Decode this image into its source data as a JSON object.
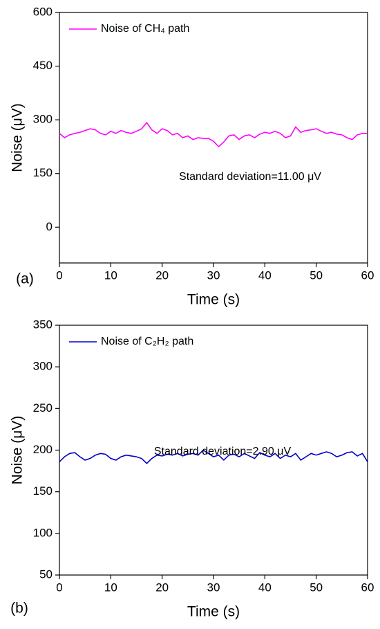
{
  "chart_data": [
    {
      "type": "line",
      "panel_label": "(a)",
      "xlabel": "Time (s)",
      "ylabel": "Noise (μV)",
      "annotation": "Standard deviation=11.00 μV",
      "xlim": [
        0,
        60
      ],
      "xticks": [
        0,
        10,
        20,
        30,
        40,
        50,
        60
      ],
      "ylim": [
        -100,
        600
      ],
      "yticks": [
        0,
        150,
        300,
        450,
        600
      ],
      "legend": "upper left",
      "x": [
        0,
        1,
        2,
        3,
        4,
        5,
        6,
        7,
        8,
        9,
        10,
        11,
        12,
        13,
        14,
        15,
        16,
        17,
        18,
        19,
        20,
        21,
        22,
        23,
        24,
        25,
        26,
        27,
        28,
        29,
        30,
        31,
        32,
        33,
        34,
        35,
        36,
        37,
        38,
        39,
        40,
        41,
        42,
        43,
        44,
        45,
        46,
        47,
        48,
        49,
        50,
        51,
        52,
        53,
        54,
        55,
        56,
        57,
        58,
        59,
        60
      ],
      "series": [
        {
          "name": "Noise of CH₄ path",
          "color": "#ff00ff",
          "values": [
            262,
            250,
            258,
            262,
            265,
            270,
            275,
            272,
            262,
            258,
            268,
            262,
            270,
            265,
            262,
            268,
            275,
            292,
            272,
            262,
            275,
            270,
            258,
            262,
            250,
            255,
            245,
            250,
            248,
            248,
            240,
            225,
            238,
            255,
            258,
            245,
            255,
            258,
            250,
            260,
            265,
            262,
            268,
            262,
            250,
            255,
            280,
            265,
            270,
            272,
            275,
            268,
            262,
            265,
            260,
            258,
            250,
            245,
            258,
            262,
            262
          ]
        }
      ]
    },
    {
      "type": "line",
      "panel_label": "(b)",
      "xlabel": "Time (s)",
      "ylabel": "Noise (μV)",
      "annotation": "Standard deviation=2.90 μV",
      "xlim": [
        0,
        60
      ],
      "xticks": [
        0,
        10,
        20,
        30,
        40,
        50,
        60
      ],
      "ylim": [
        50,
        350
      ],
      "yticks": [
        50,
        100,
        150,
        200,
        250,
        300,
        350
      ],
      "legend": "upper left",
      "x": [
        0,
        1,
        2,
        3,
        4,
        5,
        6,
        7,
        8,
        9,
        10,
        11,
        12,
        13,
        14,
        15,
        16,
        17,
        18,
        19,
        20,
        21,
        22,
        23,
        24,
        25,
        26,
        27,
        28,
        29,
        30,
        31,
        32,
        33,
        34,
        35,
        36,
        37,
        38,
        39,
        40,
        41,
        42,
        43,
        44,
        45,
        46,
        47,
        48,
        49,
        50,
        51,
        52,
        53,
        54,
        55,
        56,
        57,
        58,
        59,
        60
      ],
      "series": [
        {
          "name": "Noise of C₂H₂ path",
          "color": "#0000cc",
          "values": [
            186,
            192,
            196,
            197,
            192,
            188,
            190,
            194,
            196,
            195,
            190,
            188,
            192,
            194,
            193,
            192,
            190,
            184,
            190,
            194,
            193,
            195,
            194,
            196,
            193,
            195,
            196,
            194,
            200,
            196,
            192,
            194,
            188,
            194,
            195,
            192,
            196,
            193,
            190,
            197,
            194,
            192,
            196,
            190,
            194,
            192,
            196,
            188,
            192,
            196,
            194,
            196,
            198,
            196,
            192,
            194,
            197,
            198,
            193,
            196,
            186
          ]
        }
      ]
    }
  ]
}
